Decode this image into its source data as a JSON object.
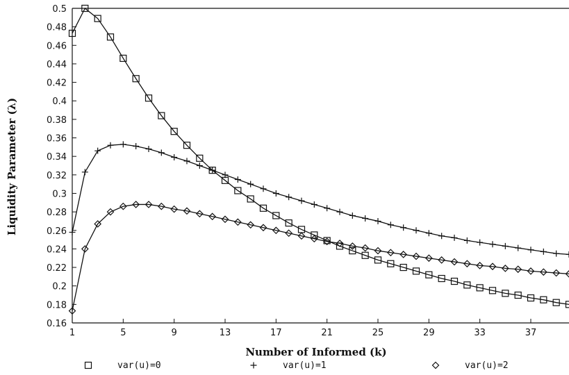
{
  "chart_data": {
    "type": "line",
    "title": "",
    "xlabel": "Number of Informed (k)",
    "ylabel": "Liquidity Parameter (λ)",
    "xlim": [
      1,
      40
    ],
    "ylim": [
      0.16,
      0.5
    ],
    "x_ticks": [
      1,
      5,
      9,
      13,
      17,
      21,
      25,
      29,
      33,
      37
    ],
    "x_tick_labels": [
      "1",
      "5",
      "9",
      "13",
      "17",
      "21",
      "25",
      "29",
      "33",
      "37"
    ],
    "y_ticks": [
      0.16,
      0.18,
      0.2,
      0.22,
      0.24,
      0.26,
      0.28,
      0.3,
      0.32,
      0.34,
      0.36,
      0.38,
      0.4,
      0.42,
      0.44,
      0.46,
      0.48,
      0.5
    ],
    "y_tick_labels": [
      "0.16",
      "0.18",
      "0.2",
      "0.22",
      "0.24",
      "0.26",
      "0.28",
      "0.3",
      "0.32",
      "0.34",
      "0.36",
      "0.38",
      "0.4",
      "0.42",
      "0.44",
      "0.46",
      "0.48",
      "0.5"
    ],
    "grid": false,
    "legend_position": "bottom",
    "x": [
      1,
      2,
      3,
      4,
      5,
      6,
      7,
      8,
      9,
      10,
      11,
      12,
      13,
      14,
      15,
      16,
      17,
      18,
      19,
      20,
      21,
      22,
      23,
      24,
      25,
      26,
      27,
      28,
      29,
      30,
      31,
      32,
      33,
      34,
      35,
      36,
      37,
      38,
      39,
      40
    ],
    "series": [
      {
        "name": "var(u)=0",
        "marker": "square",
        "values": [
          0.473,
          0.5,
          0.489,
          0.469,
          0.446,
          0.424,
          0.403,
          0.384,
          0.367,
          0.352,
          0.338,
          0.325,
          0.314,
          0.303,
          0.294,
          0.284,
          0.276,
          0.268,
          0.261,
          0.255,
          0.249,
          0.243,
          0.238,
          0.233,
          0.228,
          0.224,
          0.22,
          0.216,
          0.212,
          0.208,
          0.205,
          0.201,
          0.198,
          0.195,
          0.192,
          0.19,
          0.187,
          0.185,
          0.182,
          0.18
        ]
      },
      {
        "name": "var(u)=1",
        "marker": "plus",
        "values": [
          0.258,
          0.323,
          0.346,
          0.352,
          0.353,
          0.351,
          0.348,
          0.344,
          0.339,
          0.335,
          0.33,
          0.325,
          0.32,
          0.315,
          0.31,
          0.305,
          0.3,
          0.296,
          0.292,
          0.288,
          0.284,
          0.28,
          0.276,
          0.273,
          0.27,
          0.266,
          0.263,
          0.26,
          0.257,
          0.254,
          0.252,
          0.249,
          0.247,
          0.245,
          0.243,
          0.241,
          0.239,
          0.237,
          0.235,
          0.234
        ]
      },
      {
        "name": "var(u)=2",
        "marker": "diamond",
        "values": [
          0.173,
          0.24,
          0.267,
          0.28,
          0.286,
          0.288,
          0.288,
          0.286,
          0.283,
          0.281,
          0.278,
          0.275,
          0.272,
          0.269,
          0.266,
          0.263,
          0.26,
          0.257,
          0.254,
          0.251,
          0.248,
          0.246,
          0.243,
          0.241,
          0.238,
          0.236,
          0.234,
          0.232,
          0.23,
          0.228,
          0.226,
          0.224,
          0.222,
          0.221,
          0.219,
          0.218,
          0.216,
          0.215,
          0.214,
          0.213
        ]
      }
    ]
  }
}
